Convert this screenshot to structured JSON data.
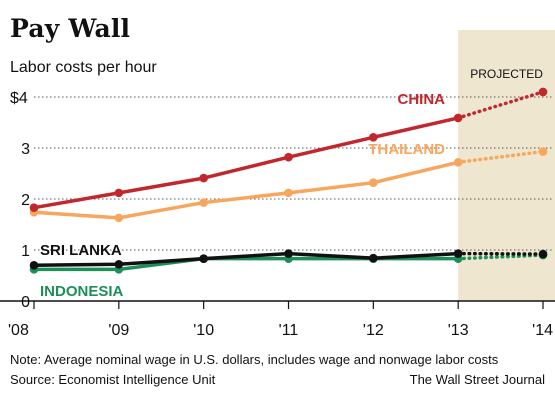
{
  "header": {
    "title": "Pay Wall",
    "subtitle": "Labor costs per hour"
  },
  "footer": {
    "note": "Note: Average nominal wage in U.S. dollars, includes wage and nonwage labor costs",
    "source": "Source: Economist Intelligence Unit",
    "credit": "The Wall Street Journal"
  },
  "chart_data": {
    "type": "line",
    "x": [
      "'08",
      "'09",
      "'10",
      "'11",
      "'12",
      "'13",
      "'14"
    ],
    "y_ticks": [
      "0",
      "1",
      "2",
      "3",
      "$4"
    ],
    "ylim": [
      0,
      4
    ],
    "projected_label": "PROJECTED",
    "projected_from": "'13",
    "grid": "dotted horizontal",
    "colors": {
      "projected_band": "#efe6d0",
      "gridline": "#555555"
    },
    "series": [
      {
        "name": "CHINA",
        "color": "#c1272d",
        "values": [
          1.83,
          2.12,
          2.41,
          2.82,
          3.21,
          3.59,
          4.1
        ]
      },
      {
        "name": "THAILAND",
        "color": "#f7a65c",
        "values": [
          1.74,
          1.63,
          1.93,
          2.12,
          2.32,
          2.72,
          2.93
        ]
      },
      {
        "name": "SRI LANKA",
        "color": "#111111",
        "values": [
          0.7,
          0.72,
          0.83,
          0.93,
          0.84,
          0.93,
          0.92
        ]
      },
      {
        "name": "INDONESIA",
        "color": "#1f8f5a",
        "values": [
          0.62,
          0.62,
          0.83,
          0.83,
          0.83,
          0.83,
          0.9
        ]
      }
    ]
  }
}
